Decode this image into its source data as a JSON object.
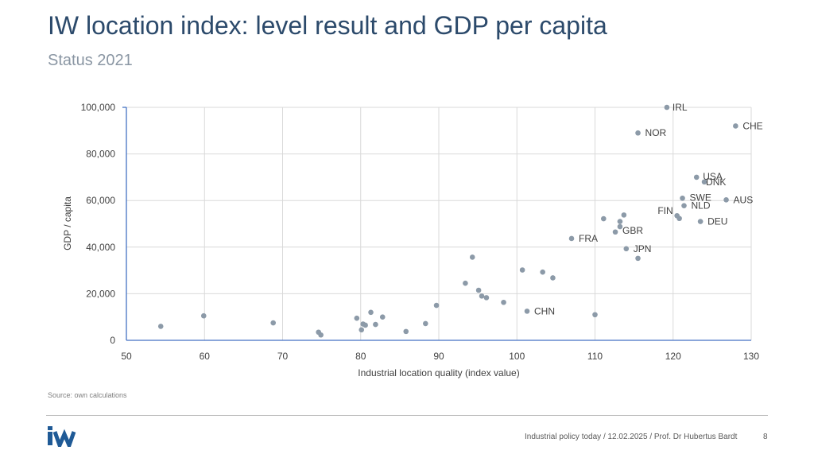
{
  "header": {
    "title": "IW location index: level result and GDP per capita",
    "subtitle": "Status 2021"
  },
  "source_note": "Source: own calculations",
  "footer": {
    "text": "Industrial policy today / 12.02.2025 / Prof. Dr Hubertus Bardt",
    "page": "8"
  },
  "logo": {
    "text": "iw",
    "color": "#1f5a96"
  },
  "colors": {
    "point": "#8c9aa8",
    "grid": "#d9d9d9",
    "axis": "#4472c4"
  },
  "chart_data": {
    "type": "scatter",
    "xlabel": "Industrial location quality (index value)",
    "ylabel": "GDP / capita",
    "xlim": [
      50,
      130
    ],
    "ylim": [
      0,
      100000
    ],
    "xticks": [
      "50",
      "60",
      "70",
      "80",
      "90",
      "100",
      "110",
      "120",
      "130"
    ],
    "yticks": [
      "0",
      "20,000",
      "40,000",
      "60,000",
      "80,000",
      "100,000"
    ],
    "grid": true,
    "labeled_points": [
      {
        "label": "IRL",
        "x": 119.2,
        "y": 100000
      },
      {
        "label": "CHE",
        "x": 128.0,
        "y": 92000
      },
      {
        "label": "NOR",
        "x": 115.5,
        "y": 89000
      },
      {
        "label": "USA",
        "x": 123.0,
        "y": 70000
      },
      {
        "label": "DNK",
        "x": 124.0,
        "y": 68000
      },
      {
        "label": "SWE",
        "x": 121.2,
        "y": 61000
      },
      {
        "label": "AUS",
        "x": 126.8,
        "y": 60300
      },
      {
        "label": "NLD",
        "x": 121.4,
        "y": 57800
      },
      {
        "label": "FIN",
        "x": 120.5,
        "y": 53500
      },
      {
        "label": "DEU",
        "x": 123.5,
        "y": 51000
      },
      {
        "label": "GBR",
        "x": 112.6,
        "y": 46500
      },
      {
        "label": "FRA",
        "x": 107.0,
        "y": 43700
      },
      {
        "label": "JPN",
        "x": 114.0,
        "y": 39300
      },
      {
        "label": "CHN",
        "x": 101.3,
        "y": 12500
      }
    ],
    "unlabeled_points": [
      {
        "x": 54.4,
        "y": 6000
      },
      {
        "x": 59.9,
        "y": 10500
      },
      {
        "x": 68.8,
        "y": 7500
      },
      {
        "x": 74.6,
        "y": 3500
      },
      {
        "x": 74.9,
        "y": 2300
      },
      {
        "x": 79.5,
        "y": 9500
      },
      {
        "x": 80.1,
        "y": 4500
      },
      {
        "x": 80.3,
        "y": 7000
      },
      {
        "x": 80.6,
        "y": 6500
      },
      {
        "x": 81.3,
        "y": 12000
      },
      {
        "x": 81.9,
        "y": 6800
      },
      {
        "x": 82.8,
        "y": 10000
      },
      {
        "x": 85.8,
        "y": 3800
      },
      {
        "x": 88.3,
        "y": 7200
      },
      {
        "x": 89.7,
        "y": 15000
      },
      {
        "x": 93.4,
        "y": 24500
      },
      {
        "x": 94.3,
        "y": 35700
      },
      {
        "x": 95.1,
        "y": 21500
      },
      {
        "x": 95.5,
        "y": 19000
      },
      {
        "x": 96.1,
        "y": 18300
      },
      {
        "x": 98.3,
        "y": 16300
      },
      {
        "x": 100.7,
        "y": 30200
      },
      {
        "x": 103.3,
        "y": 29300
      },
      {
        "x": 104.6,
        "y": 26800
      },
      {
        "x": 110.0,
        "y": 11000
      },
      {
        "x": 111.1,
        "y": 52200
      },
      {
        "x": 113.2,
        "y": 51000
      },
      {
        "x": 113.2,
        "y": 48800
      },
      {
        "x": 113.7,
        "y": 53800
      },
      {
        "x": 115.5,
        "y": 35200
      },
      {
        "x": 120.8,
        "y": 52300
      }
    ]
  }
}
